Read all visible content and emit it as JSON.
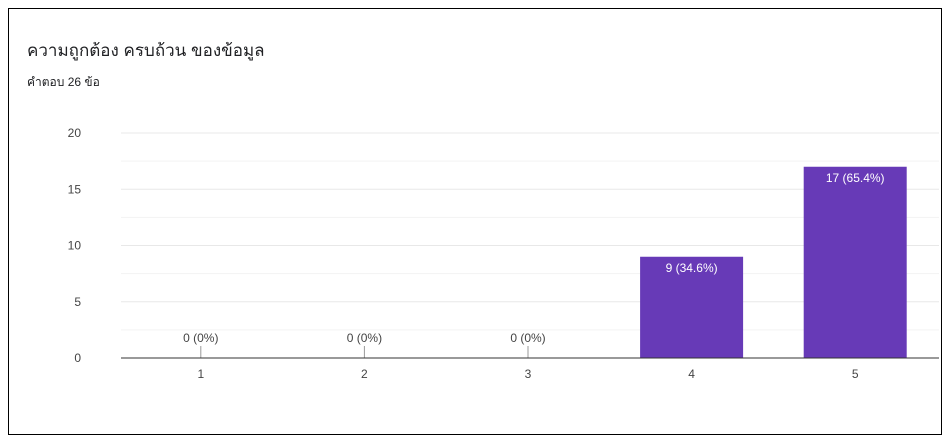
{
  "header": {
    "title": "ความถูกต้อง ครบถ้วน ของข้อมูล",
    "responses": "คำตอบ 26 ข้อ"
  },
  "colors": {
    "bar": "#673ab7",
    "grid_major": "#e8e8e8",
    "grid_minor": "#f3f3f3",
    "axis": "#333333",
    "label_inside": "#ffffff",
    "label_outside": "#444444"
  },
  "chart_data": {
    "type": "bar",
    "categories": [
      "1",
      "2",
      "3",
      "4",
      "5"
    ],
    "values": [
      0,
      0,
      0,
      9,
      17
    ],
    "data_labels": [
      "0 (0%)",
      "0 (0%)",
      "0 (0%)",
      "9 (34.6%)",
      "17 (65.4%)"
    ],
    "ylim": [
      0,
      20
    ],
    "yticks": [
      0,
      5,
      10,
      15,
      20
    ],
    "grid": true,
    "legend": false,
    "title": "ความถูกต้อง ครบถ้วน ของข้อมูล",
    "xlabel": "",
    "ylabel": ""
  }
}
